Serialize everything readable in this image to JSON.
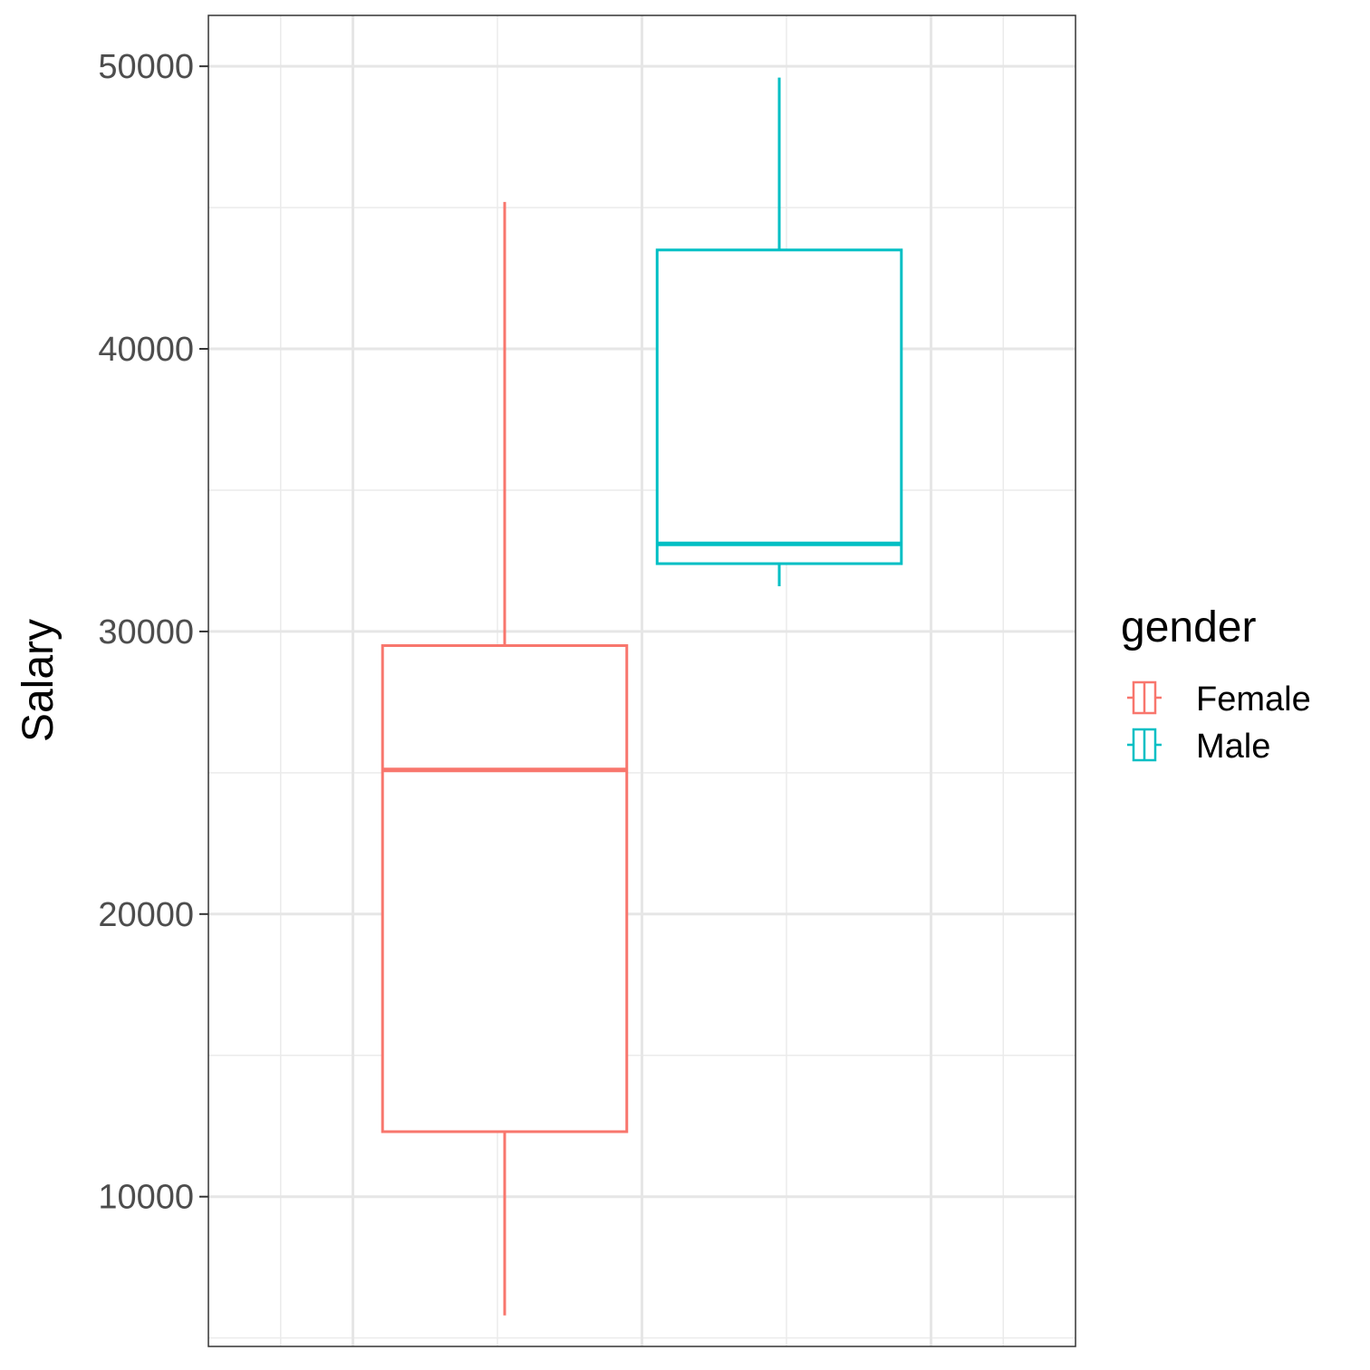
{
  "chart_data": {
    "type": "box",
    "title": "",
    "xlabel": "",
    "ylabel": "Salary",
    "ylim": [
      4700,
      51800
    ],
    "y_ticks": [
      10000,
      20000,
      30000,
      40000,
      50000
    ],
    "y_tick_labels": [
      "10000",
      "20000",
      "30000",
      "40000",
      "50000"
    ],
    "y_minor_ticks": [
      5000,
      15000,
      25000,
      35000,
      45000
    ],
    "x_positions": [
      0.81,
      1.19
    ],
    "x_range": [
      0.4,
      1.6
    ],
    "x_grid_major": [
      0.6,
      1.0,
      1.4
    ],
    "x_grid_minor": [
      0.5,
      0.8,
      1.2,
      1.5
    ],
    "box_half_width": 0.169,
    "grid": true,
    "legend_position": "right",
    "legend": {
      "title": "gender",
      "entries": [
        "Female",
        "Male"
      ]
    },
    "series": [
      {
        "name": "Female",
        "color": "#F8766D",
        "min": 5800,
        "q1": 12300,
        "median": 25100,
        "q3": 29500,
        "max": 45200
      },
      {
        "name": "Male",
        "color": "#00BFC4",
        "min": 31600,
        "q1": 32400,
        "median": 33100,
        "q3": 43500,
        "max": 49600
      }
    ]
  }
}
